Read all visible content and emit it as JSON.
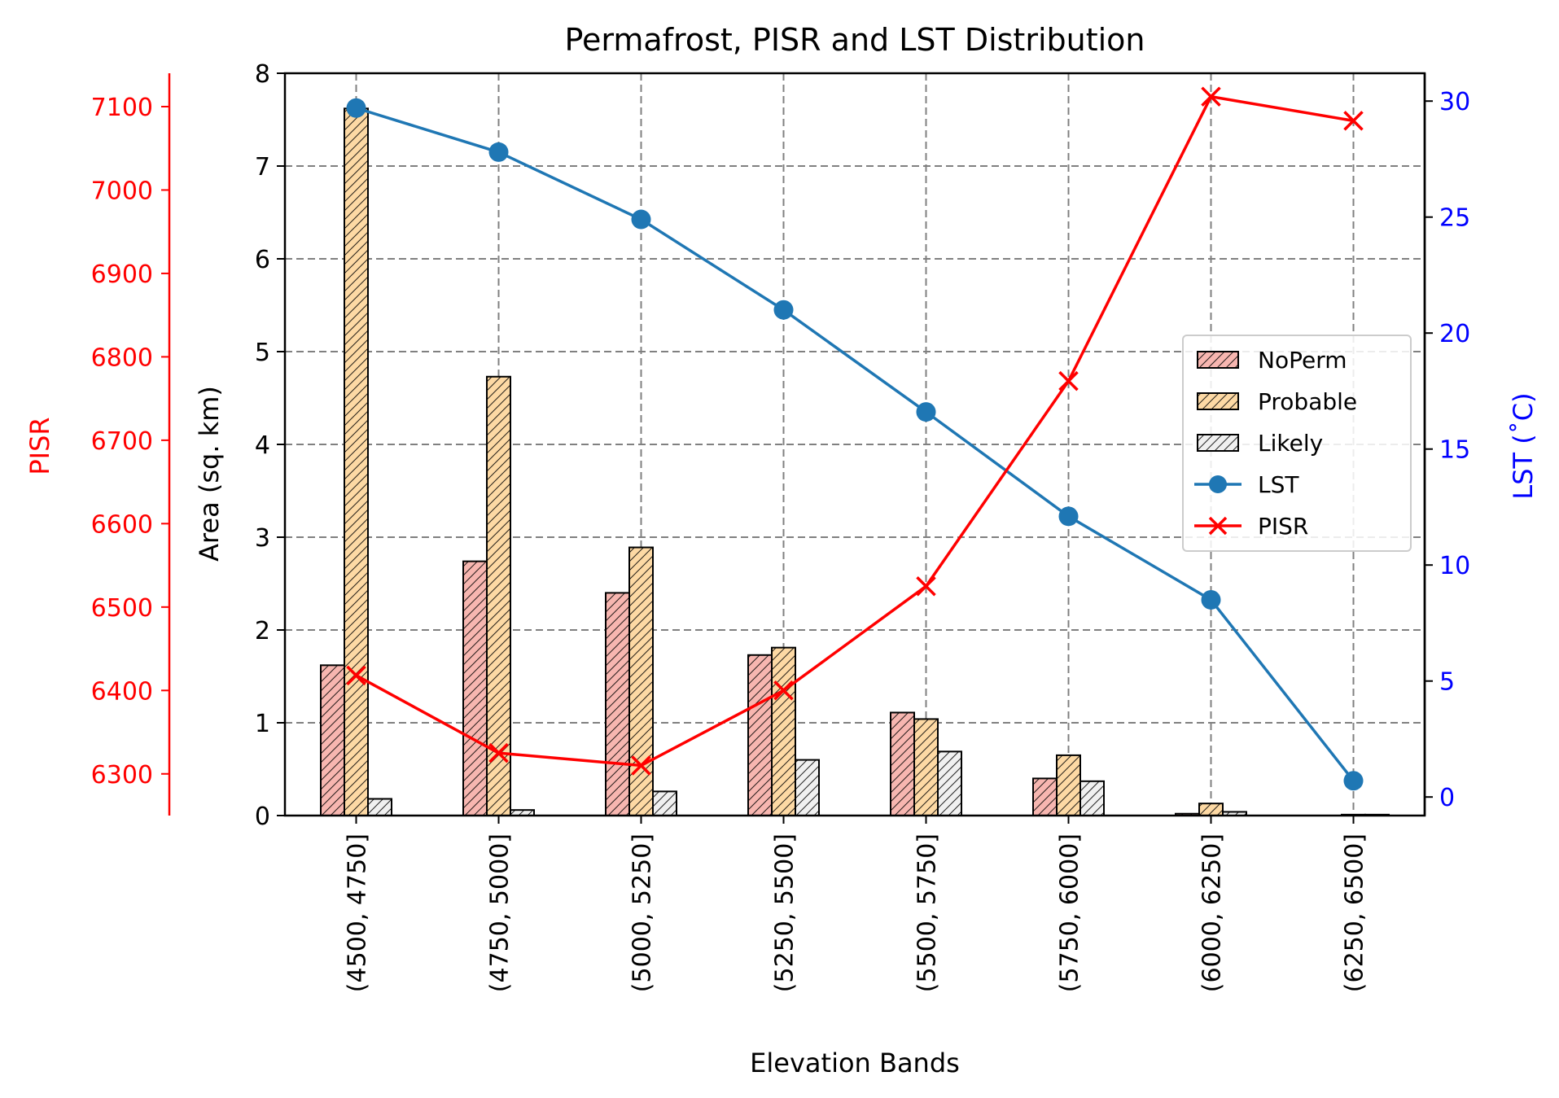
{
  "chart_data": {
    "type": "bar",
    "title": "Permafrost, PISR and LST Distribution",
    "xlabel": "Elevation Bands",
    "ylabel": "Area (sq. km)",
    "y2label": "LST (˚C)",
    "y3label": "PISR",
    "categories": [
      "(4500, 4750]",
      "(4750, 5000]",
      "(5000, 5250]",
      "(5250, 5500]",
      "(5500, 5750]",
      "(5750, 6000]",
      "(6000, 6250]",
      "(6250, 6500]"
    ],
    "ylim": [
      0,
      8
    ],
    "y2lim": [
      -0.8,
      31.2
    ],
    "y3lim": [
      6250,
      7140
    ],
    "yticks": [
      0,
      1,
      2,
      3,
      4,
      5,
      6,
      7,
      8
    ],
    "y2ticks": [
      0,
      5,
      10,
      15,
      20,
      25,
      30
    ],
    "y3ticks": [
      6300,
      6400,
      6500,
      6600,
      6700,
      6800,
      6900,
      7000,
      7100
    ],
    "grid": true,
    "legend_position": "right",
    "bar_series": [
      {
        "name": "NoPerm",
        "color": "#f7b6b0",
        "values": [
          1.62,
          2.74,
          2.4,
          1.73,
          1.11,
          0.4,
          0.02,
          0.0
        ]
      },
      {
        "name": "Probable",
        "color": "#fdd9a4",
        "values": [
          7.62,
          4.73,
          2.89,
          1.81,
          1.04,
          0.65,
          0.13,
          0.01
        ]
      },
      {
        "name": "Likely",
        "color": "#f0f0f0",
        "values": [
          0.18,
          0.06,
          0.26,
          0.6,
          0.69,
          0.37,
          0.04,
          0.01
        ]
      }
    ],
    "line_series": [
      {
        "name": "LST",
        "axis": "y2",
        "color": "#1f77b4",
        "marker": "circle",
        "values": [
          29.7,
          27.8,
          24.9,
          21.0,
          16.6,
          12.1,
          8.5,
          0.7
        ]
      },
      {
        "name": "PISR",
        "axis": "y3",
        "color": "#ff0000",
        "marker": "x",
        "values": [
          6418,
          6325,
          6310,
          6400,
          6525,
          6771,
          7112,
          7083
        ]
      }
    ]
  }
}
